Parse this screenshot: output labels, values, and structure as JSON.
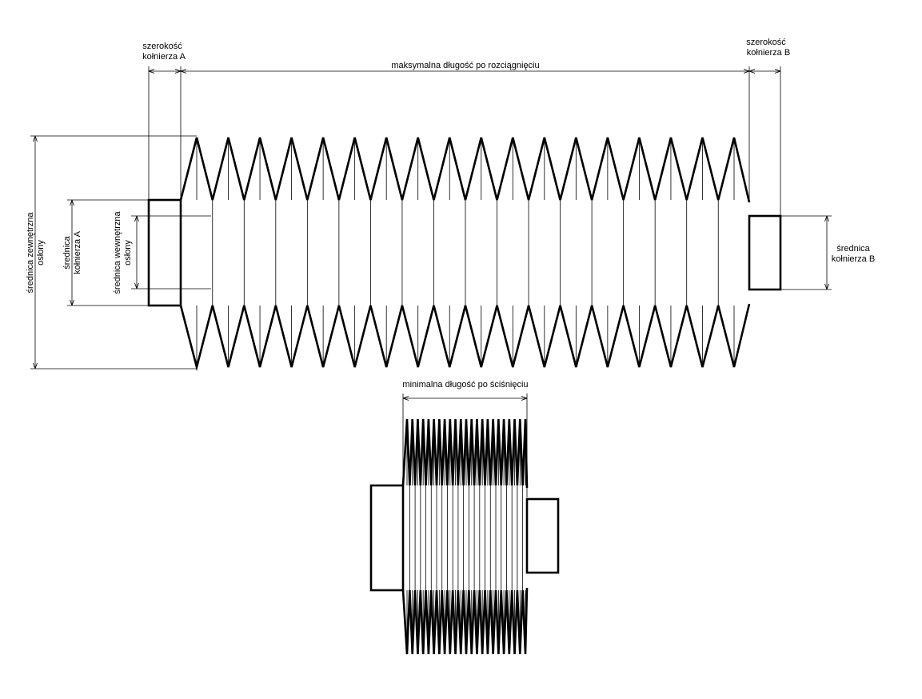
{
  "labels": {
    "flange_a_width_l1": "szerokość",
    "flange_a_width_l2": "kołnierza A",
    "flange_b_width_l1": "szerokość",
    "flange_b_width_l2": "kołnierza B",
    "max_length": "maksymalna długość po rozciągnięciu",
    "outer_diameter_l1": "średnica zewnętrzna",
    "outer_diameter_l2": "osłony",
    "flange_a_diameter_l1": "średnica",
    "flange_a_diameter_l2": "kołnierza A",
    "inner_diameter_l1": "średnica wewnętrzna",
    "inner_diameter_l2": "osłony",
    "flange_b_diameter_l1": "średnica",
    "flange_b_diameter_l2": "kołnierza B",
    "min_length": "minimalna długość po ściśnięciu"
  },
  "bellows": {
    "extended_folds": 17,
    "compressed_folds": 22
  },
  "colors": {
    "line": "#000000",
    "background": "#ffffff"
  }
}
